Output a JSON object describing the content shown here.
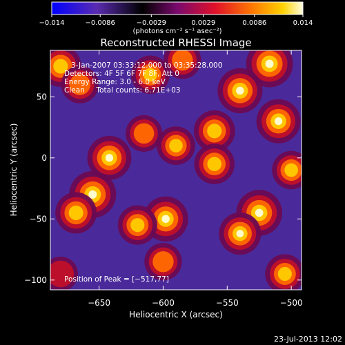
{
  "chart_data": {
    "type": "heatmap",
    "title": "Reconstructed RHESSI Image",
    "xlabel": "Heliocentric X (arcsec)",
    "ylabel": "Heliocentric Y (arcsec)",
    "xlim": [
      -688,
      -492
    ],
    "ylim": [
      -108,
      88
    ],
    "x_ticks": [
      -650,
      -600,
      -550,
      -500
    ],
    "x_tick_labels": [
      "−650",
      "−600",
      "−550",
      "−500"
    ],
    "y_ticks": [
      -100,
      -50,
      0,
      50
    ],
    "y_tick_labels": [
      "−100",
      "−50",
      "0",
      "50"
    ],
    "colorbar": {
      "range": [
        -0.014,
        0.014
      ],
      "ticks": [
        -0.014,
        -0.0086,
        -0.0029,
        0.0029,
        0.0086,
        0.014
      ],
      "tick_labels": [
        "−0.014",
        "−0.0086",
        "−0.0029",
        "0.0029",
        "0.0086",
        "0.014"
      ],
      "unit_label": "(photons cm⁻² s⁻¹ asec⁻²)",
      "colors": [
        "#0000ff",
        "#5a2cb0",
        "#000000",
        "#7a0a6e",
        "#e0102a",
        "#ff7a00",
        "#ffd200",
        "#ffffe0"
      ]
    },
    "annotations": [
      "3-Jan-2007 03:33:12.000 to 03:35:28.000",
      "Detectors: 4F 5F 6F 7F 8F, Att 0",
      "Energy Range: 3.0 - 6.0 keV",
      "Clean     Total counts: 6.71E+03"
    ],
    "peak_label": "Position of Peak = [−517,77]",
    "peak": [
      -517,
      77
    ],
    "sources": [
      {
        "x": -655,
        "y": -30,
        "strength": 1.0
      },
      {
        "x": -642,
        "y": 0,
        "strength": 0.85
      },
      {
        "x": -668,
        "y": -45,
        "strength": 0.7
      },
      {
        "x": -598,
        "y": -50,
        "strength": 0.9
      },
      {
        "x": -620,
        "y": -55,
        "strength": 0.6
      },
      {
        "x": -525,
        "y": -45,
        "strength": 0.95
      },
      {
        "x": -540,
        "y": -62,
        "strength": 0.75
      },
      {
        "x": -517,
        "y": 77,
        "strength": 1.0
      },
      {
        "x": -540,
        "y": 55,
        "strength": 0.9
      },
      {
        "x": -510,
        "y": 30,
        "strength": 0.85
      },
      {
        "x": -560,
        "y": 22,
        "strength": 0.7
      },
      {
        "x": -590,
        "y": 10,
        "strength": 0.55
      },
      {
        "x": -560,
        "y": -5,
        "strength": 0.65
      },
      {
        "x": -680,
        "y": 75,
        "strength": 0.7
      },
      {
        "x": -665,
        "y": 60,
        "strength": 0.5
      },
      {
        "x": -610,
        "y": 68,
        "strength": 0.55
      },
      {
        "x": -585,
        "y": 80,
        "strength": 0.5
      },
      {
        "x": -600,
        "y": -85,
        "strength": 0.5
      },
      {
        "x": -505,
        "y": -95,
        "strength": 0.6
      },
      {
        "x": -680,
        "y": -95,
        "strength": 0.35
      },
      {
        "x": -615,
        "y": 20,
        "strength": 0.45
      },
      {
        "x": -500,
        "y": -10,
        "strength": 0.55
      }
    ]
  },
  "timestamp": "23-Jul-2013 12:02"
}
